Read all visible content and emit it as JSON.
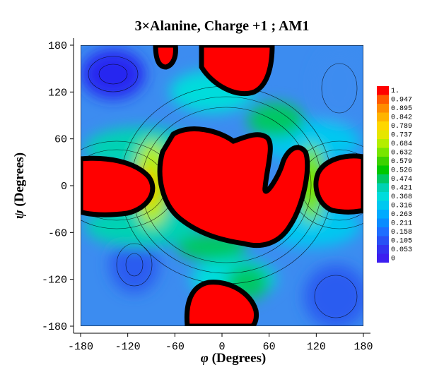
{
  "chart_data": {
    "type": "heatmap",
    "title": "3×Alanine, Charge +1 ; AM1",
    "xlabel_symbol": "φ",
    "xlabel_text": " (Degrees)",
    "ylabel_symbol": "ψ",
    "ylabel_text": " (Degrees)",
    "xlim": [
      -180,
      180
    ],
    "ylim": [
      -180,
      180
    ],
    "xticks": [
      "-180",
      "-120",
      "-60",
      "0",
      "60",
      "120",
      "180"
    ],
    "yticks": [
      "180",
      "120",
      "60",
      "0",
      "-60",
      "-120",
      "-180"
    ],
    "xtick_values": [
      -180,
      -120,
      -60,
      0,
      60,
      120,
      180
    ],
    "ytick_values": [
      180,
      120,
      60,
      0,
      -60,
      -120,
      -180
    ],
    "colorbar_labels": [
      "1.",
      "0.947",
      "0.895",
      "0.842",
      "0.789",
      "0.737",
      "0.684",
      "0.632",
      "0.579",
      "0.526",
      "0.474",
      "0.421",
      "0.368",
      "0.316",
      "0.263",
      "0.211",
      "0.158",
      "0.105",
      "0.053",
      "0"
    ],
    "colorbar_colors": [
      "#ff0000",
      "#ff5a00",
      "#ff8c00",
      "#ffb400",
      "#ffd700",
      "#e6e600",
      "#b4ee00",
      "#78e600",
      "#3cd200",
      "#00c800",
      "#00c864",
      "#00d2b4",
      "#00dcdc",
      "#00c8f0",
      "#00aaff",
      "#0a8cff",
      "#1e6eff",
      "#2850f5",
      "#3232f0",
      "#3c1ef0"
    ]
  }
}
